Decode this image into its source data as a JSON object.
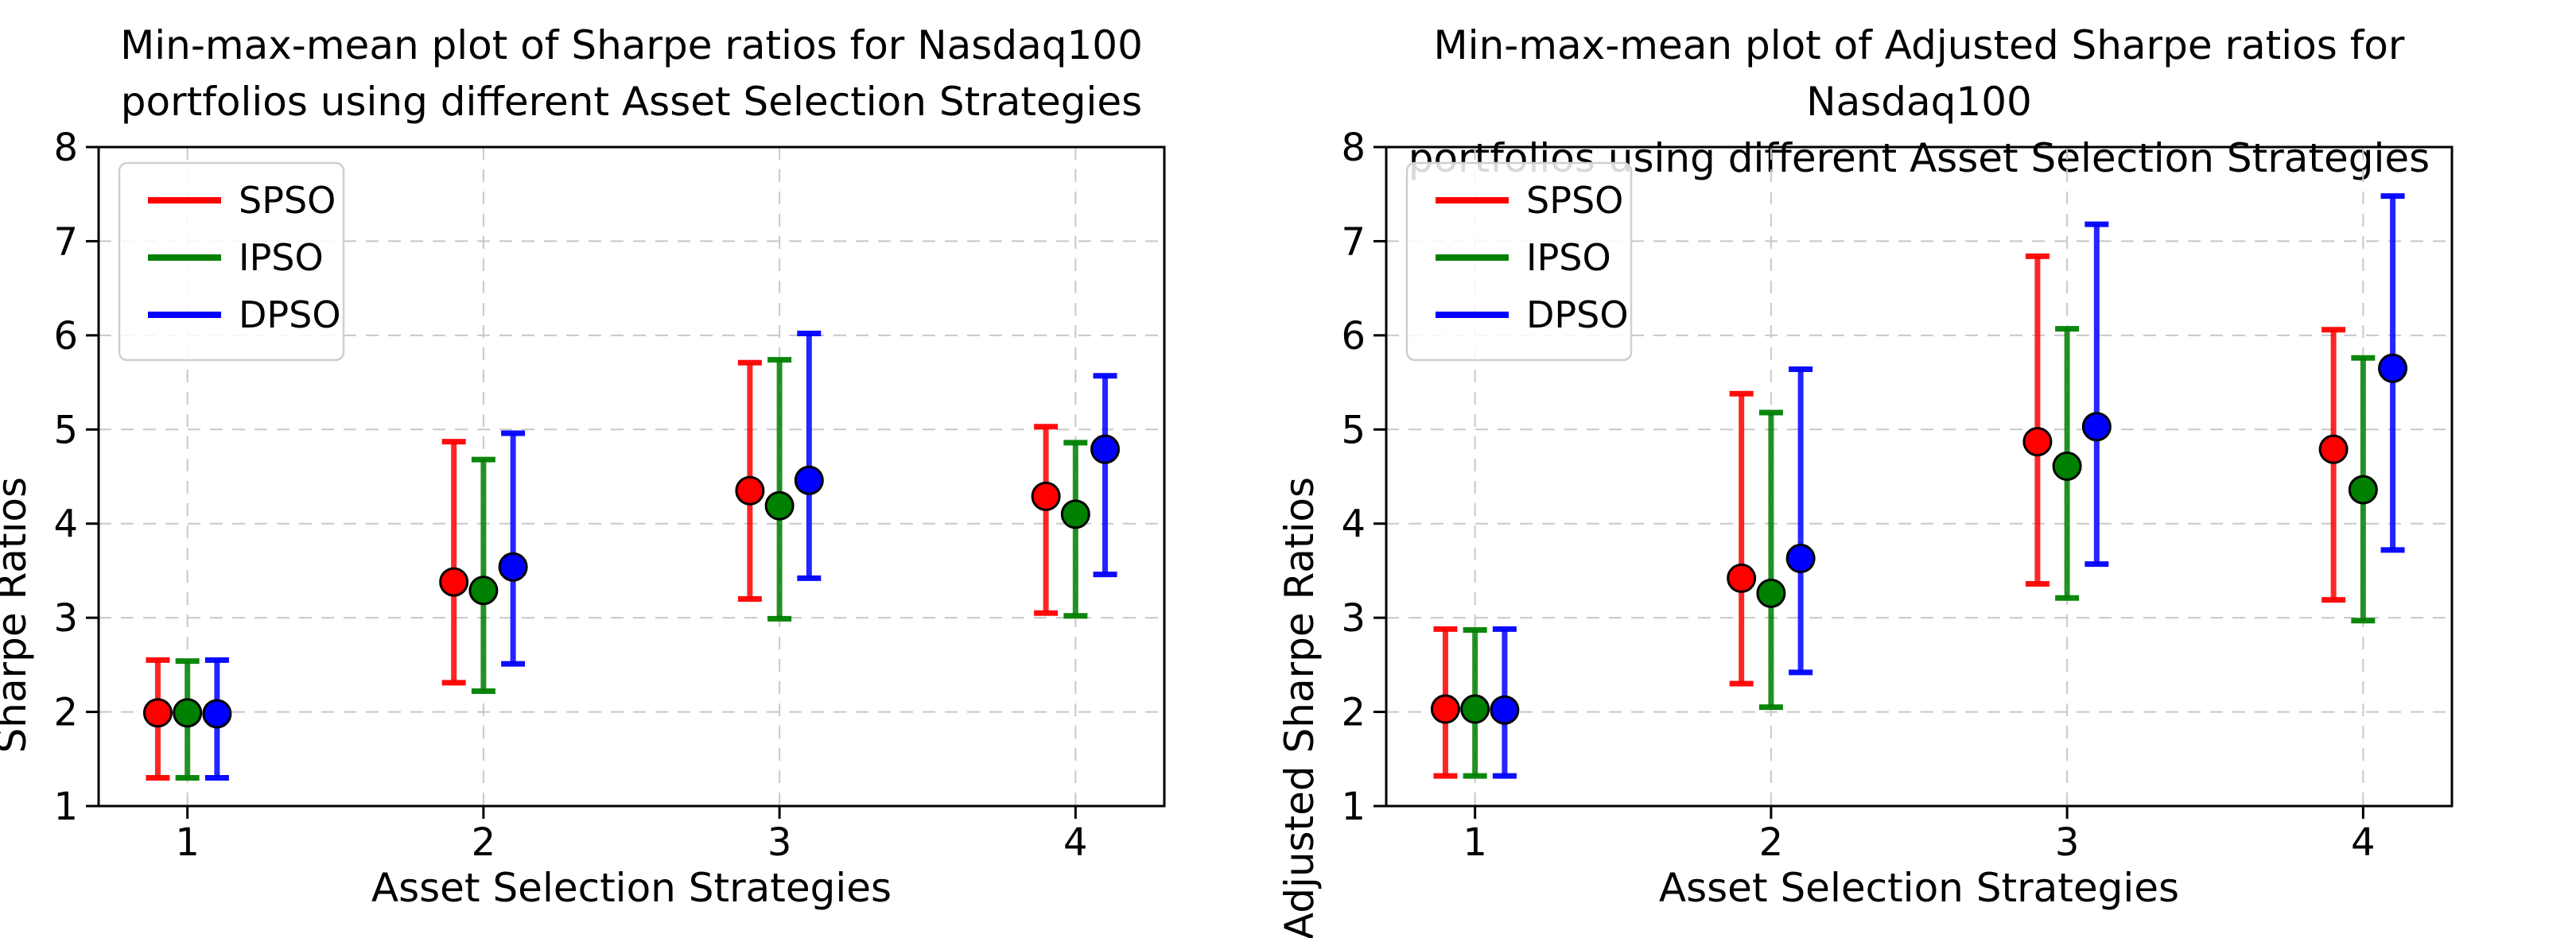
{
  "figure": {
    "background": "#ffffff",
    "grid_color": "#c8c8c8",
    "spine_color": "#000000",
    "marker_edge_color": "#000000"
  },
  "chart_data": [
    {
      "type": "scatter",
      "subtype": "min-max-mean errorbar plot",
      "title": "Min-max-mean plot of Sharpe ratios for Nasdaq100\nportfolios using different Asset Selection Strategies",
      "xlabel": "Asset Selection Strategies",
      "ylabel": "Sharpe Ratios",
      "xlim": [
        0.7,
        4.3
      ],
      "ylim": [
        1,
        8
      ],
      "xticks": [
        "1",
        "2",
        "3",
        "4"
      ],
      "yticks": [
        "1",
        "2",
        "3",
        "4",
        "5",
        "6",
        "7",
        "8"
      ],
      "grid": true,
      "legend_position": "upper-left",
      "legend": [
        "SPSO",
        "IPSO",
        "DPSO"
      ],
      "series": [
        {
          "name": "SPSO",
          "color": "#ff0000",
          "offset": -0.1,
          "points": [
            {
              "x": 1,
              "mean": 1.99,
              "min": 1.3,
              "max": 2.55
            },
            {
              "x": 2,
              "mean": 3.38,
              "min": 2.31,
              "max": 4.87
            },
            {
              "x": 3,
              "mean": 4.35,
              "min": 3.2,
              "max": 5.71
            },
            {
              "x": 4,
              "mean": 4.29,
              "min": 3.05,
              "max": 5.03
            }
          ]
        },
        {
          "name": "IPSO",
          "color": "#008000",
          "offset": 0.0,
          "points": [
            {
              "x": 1,
              "mean": 1.99,
              "min": 1.3,
              "max": 2.54
            },
            {
              "x": 2,
              "mean": 3.29,
              "min": 2.22,
              "max": 4.68
            },
            {
              "x": 3,
              "mean": 4.19,
              "min": 2.99,
              "max": 5.74
            },
            {
              "x": 4,
              "mean": 4.1,
              "min": 3.02,
              "max": 4.86
            }
          ]
        },
        {
          "name": "DPSO",
          "color": "#0000ff",
          "offset": 0.1,
          "points": [
            {
              "x": 1,
              "mean": 1.98,
              "min": 1.3,
              "max": 2.55
            },
            {
              "x": 2,
              "mean": 3.54,
              "min": 2.51,
              "max": 4.96
            },
            {
              "x": 3,
              "mean": 4.46,
              "min": 3.42,
              "max": 6.02
            },
            {
              "x": 4,
              "mean": 4.79,
              "min": 3.46,
              "max": 5.57
            }
          ]
        }
      ]
    },
    {
      "type": "scatter",
      "subtype": "min-max-mean errorbar plot",
      "title": "Min-max-mean plot of Adjusted Sharpe ratios for Nasdaq100\nportfolios using different Asset Selection Strategies",
      "xlabel": "Asset Selection Strategies",
      "ylabel": "Adjusted Sharpe Ratios",
      "xlim": [
        0.7,
        4.3
      ],
      "ylim": [
        1,
        8
      ],
      "xticks": [
        "1",
        "2",
        "3",
        "4"
      ],
      "yticks": [
        "1",
        "2",
        "3",
        "4",
        "5",
        "6",
        "7",
        "8"
      ],
      "grid": true,
      "legend_position": "upper-left",
      "legend": [
        "SPSO",
        "IPSO",
        "DPSO"
      ],
      "series": [
        {
          "name": "SPSO",
          "color": "#ff0000",
          "offset": -0.1,
          "points": [
            {
              "x": 1,
              "mean": 2.03,
              "min": 1.32,
              "max": 2.88
            },
            {
              "x": 2,
              "mean": 3.42,
              "min": 2.3,
              "max": 5.38
            },
            {
              "x": 3,
              "mean": 4.87,
              "min": 3.36,
              "max": 6.84
            },
            {
              "x": 4,
              "mean": 4.79,
              "min": 3.19,
              "max": 6.06
            }
          ]
        },
        {
          "name": "IPSO",
          "color": "#008000",
          "offset": 0.0,
          "points": [
            {
              "x": 1,
              "mean": 2.03,
              "min": 1.32,
              "max": 2.87
            },
            {
              "x": 2,
              "mean": 3.26,
              "min": 2.05,
              "max": 5.18
            },
            {
              "x": 3,
              "mean": 4.61,
              "min": 3.21,
              "max": 6.07
            },
            {
              "x": 4,
              "mean": 4.36,
              "min": 2.97,
              "max": 5.76
            }
          ]
        },
        {
          "name": "DPSO",
          "color": "#0000ff",
          "offset": 0.1,
          "points": [
            {
              "x": 1,
              "mean": 2.02,
              "min": 1.32,
              "max": 2.88
            },
            {
              "x": 2,
              "mean": 3.63,
              "min": 2.42,
              "max": 5.64
            },
            {
              "x": 3,
              "mean": 5.03,
              "min": 3.57,
              "max": 7.18
            },
            {
              "x": 4,
              "mean": 5.65,
              "min": 3.72,
              "max": 7.48
            }
          ]
        }
      ]
    }
  ]
}
